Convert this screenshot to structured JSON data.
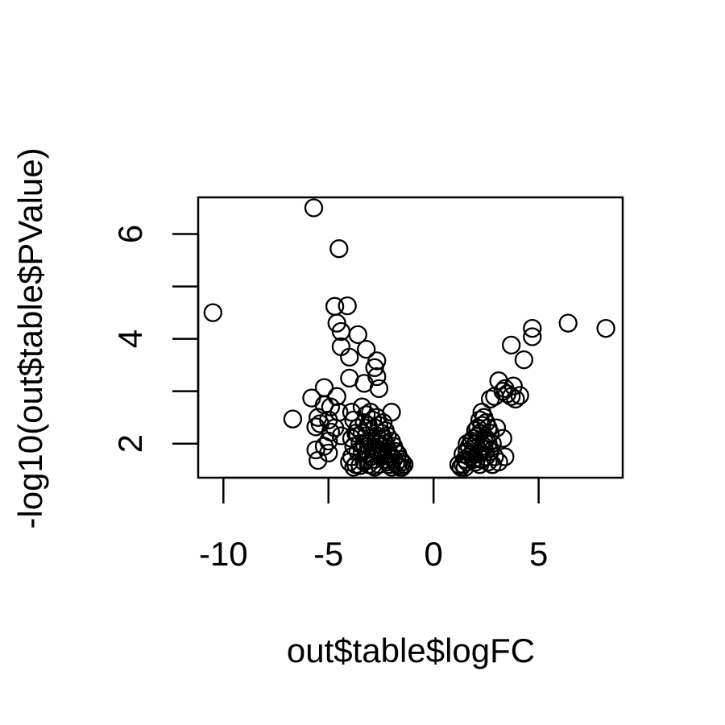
{
  "chart_data": {
    "type": "scatter",
    "xlabel": "out$table$logFC",
    "ylabel": "-log10(out$table$PValue)",
    "xlim": [
      -11.2,
      9.0
    ],
    "ylim": [
      1.35,
      6.7
    ],
    "x_ticks": [
      -10,
      -5,
      0,
      5
    ],
    "x_tick_labels": [
      "-10",
      "-5",
      "0",
      "5"
    ],
    "y_ticks": [
      2,
      3,
      4,
      5,
      6
    ],
    "y_tick_labels": [
      "2",
      "4",
      "6"
    ],
    "y_labeled_ticks": [
      2,
      4,
      6
    ],
    "grid": false,
    "legend": "none",
    "marker": "open-circle",
    "color": "#000000",
    "points": [
      [
        -10.5,
        4.5
      ],
      [
        -5.7,
        6.5
      ],
      [
        -4.5,
        5.72
      ],
      [
        -6.7,
        2.47
      ],
      [
        -4.7,
        4.62
      ],
      [
        -4.1,
        4.63
      ],
      [
        -4.6,
        4.3
      ],
      [
        -4.4,
        4.14
      ],
      [
        -3.6,
        4.08
      ],
      [
        -4.4,
        3.85
      ],
      [
        -3.2,
        3.8
      ],
      [
        -4.0,
        3.65
      ],
      [
        -2.7,
        3.58
      ],
      [
        -2.8,
        3.45
      ],
      [
        -2.7,
        3.28
      ],
      [
        -4.0,
        3.25
      ],
      [
        -3.3,
        3.15
      ],
      [
        -2.6,
        3.05
      ],
      [
        -5.2,
        3.07
      ],
      [
        -4.6,
        2.9
      ],
      [
        -5.8,
        2.87
      ],
      [
        -5.2,
        2.74
      ],
      [
        -4.9,
        2.7
      ],
      [
        -4.5,
        2.6
      ],
      [
        -5.5,
        2.5
      ],
      [
        -5.0,
        2.45
      ],
      [
        -5.4,
        2.38
      ],
      [
        -5.6,
        2.32
      ],
      [
        -4.7,
        2.3
      ],
      [
        -4.9,
        2.22
      ],
      [
        -5.0,
        2.05
      ],
      [
        -5.2,
        1.95
      ],
      [
        -5.6,
        1.88
      ],
      [
        -5.0,
        1.82
      ],
      [
        -5.5,
        1.68
      ],
      [
        -2.0,
        2.6
      ],
      [
        -4.4,
        2.15
      ],
      [
        -3.9,
        2.6
      ],
      [
        -3.8,
        2.45
      ],
      [
        -3.6,
        2.3
      ],
      [
        -3.7,
        2.2
      ],
      [
        -3.9,
        2.1
      ],
      [
        -3.8,
        1.95
      ],
      [
        -3.6,
        1.85
      ],
      [
        -3.9,
        1.75
      ],
      [
        -4.0,
        1.65
      ],
      [
        -3.7,
        1.6
      ],
      [
        -3.8,
        1.55
      ],
      [
        -3.5,
        1.58
      ],
      [
        -3.4,
        2.7
      ],
      [
        -3.2,
        2.55
      ],
      [
        -3.0,
        2.6
      ],
      [
        -3.3,
        2.4
      ],
      [
        -3.1,
        2.35
      ],
      [
        -2.9,
        2.45
      ],
      [
        -3.4,
        2.2
      ],
      [
        -3.2,
        2.15
      ],
      [
        -3.0,
        2.1
      ],
      [
        -2.8,
        2.3
      ],
      [
        -3.3,
        2.0
      ],
      [
        -3.1,
        1.95
      ],
      [
        -2.9,
        1.9
      ],
      [
        -3.4,
        1.85
      ],
      [
        -3.2,
        1.8
      ],
      [
        -3.0,
        1.75
      ],
      [
        -2.8,
        1.7
      ],
      [
        -3.3,
        1.65
      ],
      [
        -3.1,
        1.6
      ],
      [
        -2.9,
        1.58
      ],
      [
        -2.7,
        2.5
      ],
      [
        -2.6,
        2.35
      ],
      [
        -2.5,
        2.2
      ],
      [
        -2.7,
        2.15
      ],
      [
        -2.6,
        2.0
      ],
      [
        -2.5,
        1.95
      ],
      [
        -2.7,
        1.85
      ],
      [
        -2.6,
        1.8
      ],
      [
        -2.5,
        1.75
      ],
      [
        -2.4,
        2.4
      ],
      [
        -2.3,
        2.25
      ],
      [
        -2.4,
        2.1
      ],
      [
        -2.3,
        2.0
      ],
      [
        -2.2,
        1.9
      ],
      [
        -2.4,
        1.85
      ],
      [
        -2.3,
        1.7
      ],
      [
        -2.2,
        1.65
      ],
      [
        -2.1,
        1.8
      ],
      [
        -2.0,
        1.75
      ],
      [
        -2.1,
        1.6
      ],
      [
        -1.9,
        1.7
      ],
      [
        -1.8,
        1.62
      ],
      [
        -1.7,
        1.58
      ],
      [
        -1.6,
        1.55
      ],
      [
        -2.0,
        1.55
      ],
      [
        -2.2,
        2.15
      ],
      [
        -2.0,
        2.05
      ],
      [
        -1.9,
        1.95
      ],
      [
        -1.8,
        1.85
      ],
      [
        -1.7,
        1.8
      ],
      [
        -1.6,
        1.7
      ],
      [
        -1.5,
        1.65
      ],
      [
        -1.4,
        1.6
      ],
      [
        -1.5,
        1.55
      ],
      [
        -2.6,
        1.6
      ],
      [
        -2.8,
        1.55
      ],
      [
        -3.5,
        2.0
      ],
      [
        1.3,
        1.55
      ],
      [
        1.4,
        1.6
      ],
      [
        1.5,
        1.7
      ],
      [
        1.6,
        1.65
      ],
      [
        1.5,
        1.55
      ],
      [
        1.7,
        1.75
      ],
      [
        1.6,
        1.85
      ],
      [
        1.8,
        1.8
      ],
      [
        1.7,
        1.95
      ],
      [
        1.9,
        1.9
      ],
      [
        1.8,
        2.05
      ],
      [
        2.0,
        2.0
      ],
      [
        1.9,
        2.1
      ],
      [
        2.1,
        2.15
      ],
      [
        2.0,
        2.25
      ],
      [
        2.2,
        2.2
      ],
      [
        2.1,
        2.3
      ],
      [
        2.3,
        2.35
      ],
      [
        2.2,
        2.45
      ],
      [
        2.4,
        2.5
      ],
      [
        2.3,
        2.6
      ],
      [
        2.5,
        2.4
      ],
      [
        2.6,
        2.3
      ],
      [
        2.7,
        2.2
      ],
      [
        2.5,
        2.1
      ],
      [
        2.6,
        2.0
      ],
      [
        2.4,
        1.95
      ],
      [
        2.7,
        1.85
      ],
      [
        2.5,
        1.75
      ],
      [
        2.3,
        1.7
      ],
      [
        2.6,
        1.65
      ],
      [
        2.8,
        1.6
      ],
      [
        2.2,
        1.6
      ],
      [
        2.0,
        1.65
      ],
      [
        1.9,
        1.7
      ],
      [
        2.1,
        1.8
      ],
      [
        2.3,
        1.9
      ],
      [
        2.2,
        1.85
      ],
      [
        2.4,
        2.05
      ],
      [
        1.6,
        2.0
      ],
      [
        1.4,
        1.8
      ],
      [
        1.2,
        1.6
      ],
      [
        3.0,
        2.3
      ],
      [
        3.3,
        2.1
      ],
      [
        3.4,
        1.75
      ],
      [
        2.9,
        1.75
      ],
      [
        3.1,
        1.65
      ],
      [
        2.8,
        2.0
      ],
      [
        2.9,
        2.9
      ],
      [
        3.1,
        3.2
      ],
      [
        3.4,
        3.05
      ],
      [
        3.5,
        2.95
      ],
      [
        3.8,
        3.1
      ],
      [
        3.7,
        2.9
      ],
      [
        4.1,
        2.92
      ],
      [
        3.9,
        2.85
      ],
      [
        3.3,
        3.0
      ],
      [
        2.7,
        2.85
      ],
      [
        3.7,
        3.88
      ],
      [
        4.3,
        3.6
      ],
      [
        4.7,
        4.2
      ],
      [
        4.7,
        4.04
      ],
      [
        6.4,
        4.3
      ],
      [
        8.2,
        4.2
      ]
    ]
  }
}
